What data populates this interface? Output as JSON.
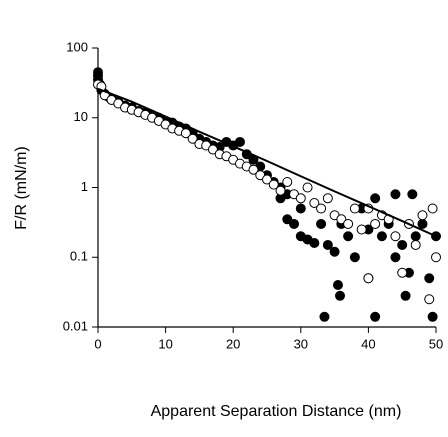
{
  "chart_data": {
    "type": "scatter",
    "x_label": "Apparent Separation Distance (nm)",
    "y_label": "F/R (mN/m)",
    "xlim": [
      0,
      50
    ],
    "ylim": [
      0.01,
      100
    ],
    "log_y": true,
    "xticks": [
      0,
      10,
      20,
      30,
      40,
      50
    ],
    "yticks": [
      0.01,
      0.1,
      1,
      10,
      100
    ],
    "grid": false,
    "series": [
      {
        "marker": "filled",
        "color": "#000000",
        "x": [
          0,
          0,
          0,
          0.3,
          0.5,
          1,
          1.5,
          2,
          3,
          4,
          5,
          6,
          7,
          8,
          9,
          10,
          11,
          12,
          13,
          14,
          15,
          16,
          17,
          18,
          19,
          20,
          21,
          22,
          23,
          24,
          25,
          26,
          27,
          27,
          28,
          28,
          29,
          30,
          30,
          31,
          32,
          33,
          33.5,
          34,
          35,
          35.5,
          35.8,
          36,
          37,
          38,
          39,
          40,
          40,
          41,
          41,
          42,
          43,
          44,
          44,
          45,
          45.5,
          46,
          46.5,
          47,
          48,
          49,
          49.5,
          50
        ],
        "values": [
          45,
          40,
          35,
          30,
          25,
          22,
          20,
          19,
          17,
          15,
          14,
          12.5,
          12,
          11,
          10,
          9,
          8.5,
          7.5,
          7,
          6,
          5,
          4.5,
          4,
          3.8,
          4.5,
          4,
          4.5,
          3,
          2.5,
          2,
          1.5,
          1.2,
          1,
          0.7,
          0.8,
          0.35,
          0.3,
          0.5,
          0.2,
          0.18,
          0.16,
          0.3,
          0.014,
          0.15,
          0.12,
          0.04,
          0.028,
          0.3,
          0.2,
          0.1,
          0.5,
          0.25,
          0.05,
          0.7,
          0.014,
          0.2,
          0.3,
          0.1,
          0.8,
          0.15,
          0.028,
          0.06,
          0.8,
          0.2,
          0.3,
          0.05,
          0.014,
          0.2
        ]
      },
      {
        "marker": "open",
        "color": "#000000",
        "x": [
          0,
          0.5,
          1,
          2,
          3,
          4,
          5,
          6,
          7,
          8,
          9,
          10,
          11,
          12,
          13,
          14,
          15,
          16,
          17,
          18,
          19,
          20,
          21,
          22,
          23,
          24,
          25,
          26,
          27,
          28,
          29,
          30,
          31,
          32,
          33,
          34,
          35,
          36,
          37,
          38,
          39,
          40,
          40,
          41,
          42,
          43,
          44,
          45,
          46,
          47,
          48,
          49,
          49.5,
          50
        ],
        "values": [
          30,
          28,
          21,
          18,
          16,
          14,
          13,
          12,
          11,
          10,
          9,
          8,
          7,
          6.5,
          6,
          5,
          4.2,
          4,
          3.5,
          3,
          2.8,
          2.5,
          2.2,
          2,
          1.8,
          1.5,
          1.3,
          1.1,
          0.9,
          1.2,
          0.8,
          0.7,
          1,
          0.6,
          0.5,
          0.7,
          0.4,
          0.35,
          0.3,
          0.5,
          0.25,
          0.5,
          0.05,
          0.3,
          0.4,
          0.35,
          0.2,
          0.06,
          0.3,
          0.15,
          0.4,
          0.025,
          0.5,
          0.1
        ]
      }
    ],
    "fit": {
      "color": "#000000",
      "x": [
        0,
        5,
        10,
        15,
        20,
        25,
        30,
        35,
        40,
        45,
        50
      ],
      "values": [
        26,
        17,
        10.4,
        6.3,
        3.9,
        2.4,
        1.45,
        0.88,
        0.54,
        0.33,
        0.2
      ]
    }
  }
}
